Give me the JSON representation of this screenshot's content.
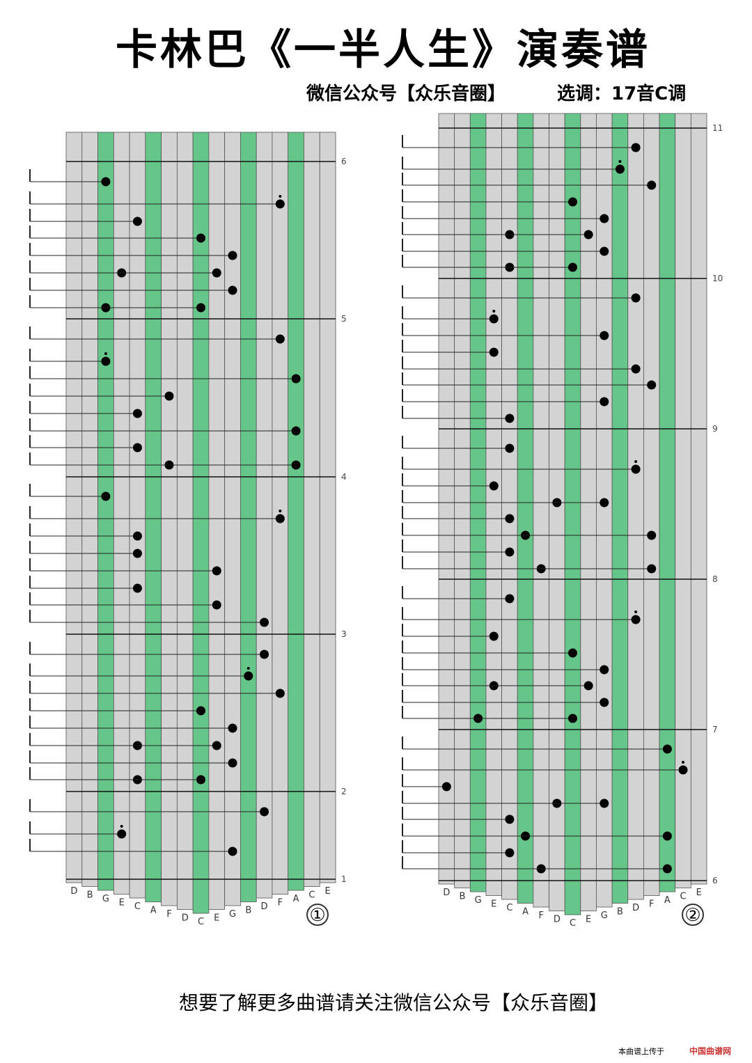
{
  "header": {
    "title": "卡林巴《一半人生》演奏谱",
    "account": "微信公众号【众乐音圈】",
    "key": "选调：17音C调"
  },
  "panels": [
    {
      "number": "①",
      "keys": [
        "D",
        "B",
        "G",
        "E",
        "C",
        "A",
        "F",
        "D",
        "C",
        "E",
        "G",
        "B",
        "D",
        "F",
        "A",
        "C",
        "E"
      ],
      "measures": [
        6,
        5,
        4,
        3,
        2,
        1
      ]
    },
    {
      "number": "②",
      "keys": [
        "D",
        "B",
        "G",
        "E",
        "C",
        "A",
        "F",
        "D",
        "C",
        "E",
        "G",
        "B",
        "D",
        "F",
        "A",
        "C",
        "E"
      ],
      "measures": [
        11,
        10,
        9,
        8,
        7,
        6
      ]
    }
  ],
  "footer": {
    "text": "想要了解更多曲谱请关注微信公众号【众乐音圈】",
    "upload": "本曲谱上传于",
    "site": "中国曲谱网"
  }
}
